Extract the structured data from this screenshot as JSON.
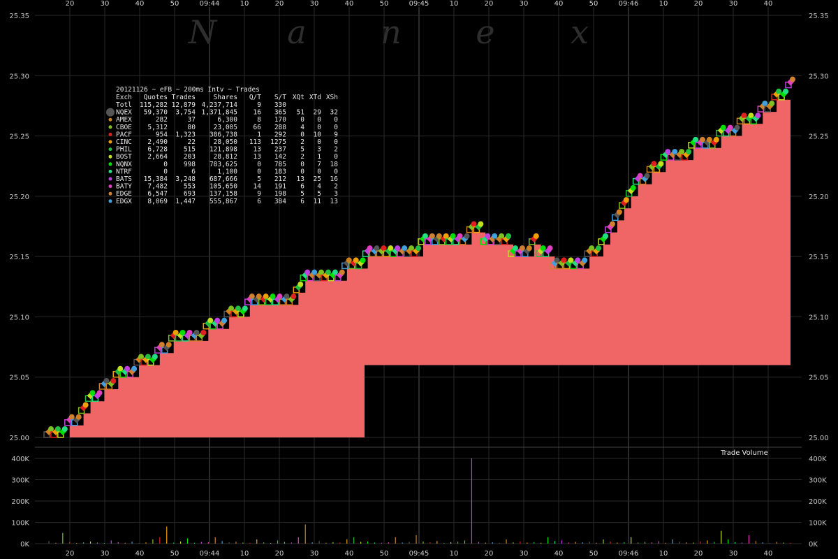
{
  "chart_data": {
    "type": "scatter",
    "title": "20121126 ~ eFB ~ 200ms Intv ~ Trades",
    "watermark_letters": [
      "N",
      "a",
      "n",
      "e",
      "x"
    ],
    "price_axis": {
      "ylim": [
        25.0,
        25.35
      ],
      "ticks": [
        "25.00",
        "25.05",
        "25.10",
        "25.15",
        "25.20",
        "25.25",
        "25.30",
        "25.35"
      ]
    },
    "volume_axis": {
      "title": "Trade Volume",
      "ylim": [
        0,
        400000
      ],
      "ticks": [
        "0K",
        "100K",
        "200K",
        "300K",
        "400K"
      ]
    },
    "time_axis": {
      "ticks": [
        {
          "label": "20",
          "major": false
        },
        {
          "label": "30",
          "major": false
        },
        {
          "label": "40",
          "major": false
        },
        {
          "label": "50",
          "major": false
        },
        {
          "label": "09:44",
          "major": true
        },
        {
          "label": "10",
          "major": false
        },
        {
          "label": "20",
          "major": false
        },
        {
          "label": "30",
          "major": false
        },
        {
          "label": "40",
          "major": false
        },
        {
          "label": "50",
          "major": false
        },
        {
          "label": "09:45",
          "major": true
        },
        {
          "label": "10",
          "major": false
        },
        {
          "label": "20",
          "major": false
        },
        {
          "label": "30",
          "major": false
        },
        {
          "label": "40",
          "major": false
        },
        {
          "label": "50",
          "major": false
        },
        {
          "label": "09:46",
          "major": true
        },
        {
          "label": "10",
          "major": false
        },
        {
          "label": "20",
          "major": false
        },
        {
          "label": "30",
          "major": false
        },
        {
          "label": "40",
          "major": false
        }
      ]
    },
    "table": {
      "header": [
        "Exch",
        "Quotes",
        "Trades",
        "Shares",
        "Q/T",
        "S/T",
        "XQt",
        "XTd",
        "XSh"
      ],
      "rows": [
        {
          "cells": [
            "Totl",
            "115,282",
            "12,879",
            "4,237,714",
            "9",
            "330",
            "",
            "",
            ""
          ],
          "color": ""
        },
        {
          "cells": [
            "NQEX",
            "59,370",
            "3,754",
            "1,371,845",
            "16",
            "365",
            "51",
            "29",
            "32"
          ],
          "color": "#555555"
        },
        {
          "cells": [
            "AMEX",
            "282",
            "37",
            "6,300",
            "8",
            "170",
            "0",
            "0",
            "0"
          ],
          "color": "#d08020"
        },
        {
          "cells": [
            "CBOE",
            "5,312",
            "80",
            "23,005",
            "66",
            "288",
            "4",
            "0",
            "0"
          ],
          "color": "#80c020"
        },
        {
          "cells": [
            "PACF",
            "954",
            "1,323",
            "386,738",
            "1",
            "292",
            "0",
            "10",
            "9"
          ],
          "color": "#e02020"
        },
        {
          "cells": [
            "CINC",
            "2,490",
            "22",
            "28,050",
            "113",
            "1275",
            "2",
            "0",
            "0"
          ],
          "color": "#f0a000"
        },
        {
          "cells": [
            "PHIL",
            "6,728",
            "515",
            "121,898",
            "13",
            "237",
            "5",
            "3",
            "2"
          ],
          "color": "#20c040"
        },
        {
          "cells": [
            "BOST",
            "2,664",
            "203",
            "28,812",
            "13",
            "142",
            "2",
            "1",
            "0"
          ],
          "color": "#c0e020"
        },
        {
          "cells": [
            "NQNX",
            "0",
            "998",
            "783,625",
            "0",
            "785",
            "0",
            "7",
            "18"
          ],
          "color": "#00e000"
        },
        {
          "cells": [
            "NTRF",
            "0",
            "6",
            "1,100",
            "0",
            "183",
            "0",
            "0",
            "0"
          ],
          "color": "#20e080"
        },
        {
          "cells": [
            "BATS",
            "15,384",
            "3,248",
            "687,666",
            "5",
            "212",
            "13",
            "25",
            "16"
          ],
          "color": "#c040e0"
        },
        {
          "cells": [
            "BATY",
            "7,482",
            "553",
            "105,650",
            "14",
            "191",
            "6",
            "4",
            "2"
          ],
          "color": "#e040c0"
        },
        {
          "cells": [
            "EDGE",
            "6,547",
            "693",
            "137,158",
            "9",
            "198",
            "5",
            "5",
            "3"
          ],
          "color": "#d08030"
        },
        {
          "cells": [
            "EDGX",
            "8,069",
            "1,447",
            "555,867",
            "6",
            "384",
            "6",
            "11",
            "13"
          ],
          "color": "#40a0e0"
        }
      ]
    },
    "series": [
      {
        "name": "Bid",
        "x": [
          0,
          1,
          2,
          3,
          4,
          5,
          6,
          7,
          8,
          9,
          10,
          11,
          12,
          13,
          14,
          15,
          16,
          17,
          18,
          19,
          20,
          21,
          22,
          23,
          24,
          25,
          26,
          27,
          28,
          29,
          30,
          31,
          32,
          33,
          34,
          35,
          36,
          37,
          38,
          39,
          40,
          41,
          42,
          43,
          44,
          45,
          46,
          47,
          48,
          49,
          50,
          51,
          52,
          53,
          54,
          55,
          56,
          57,
          58,
          59,
          60,
          61,
          62,
          63,
          64,
          65,
          66,
          67,
          68,
          69,
          70,
          71,
          72,
          73,
          74,
          75,
          76,
          77,
          78,
          79,
          80,
          81,
          82,
          83,
          84,
          85,
          86,
          87,
          88,
          89,
          90,
          91,
          92,
          93,
          94,
          95,
          96,
          97,
          98,
          99,
          100,
          101,
          102,
          103,
          104,
          105,
          106,
          107
        ],
        "values": [
          25.0,
          25.0,
          25.0,
          25.01,
          25.01,
          25.02,
          25.03,
          25.03,
          25.04,
          25.04,
          25.05,
          25.05,
          25.05,
          25.06,
          25.06,
          25.06,
          25.07,
          25.07,
          25.08,
          25.08,
          25.08,
          25.08,
          25.08,
          25.09,
          25.09,
          25.09,
          25.1,
          25.1,
          25.1,
          25.11,
          25.11,
          25.11,
          25.11,
          25.11,
          25.11,
          25.11,
          25.12,
          25.13,
          25.13,
          25.13,
          25.13,
          25.13,
          25.13,
          25.14,
          25.14,
          25.14,
          25.15,
          25.15,
          25.15,
          25.15,
          25.15,
          25.15,
          25.15,
          25.15,
          25.16,
          25.16,
          25.16,
          25.16,
          25.16,
          25.16,
          25.16,
          25.17,
          25.17,
          25.16,
          25.16,
          25.16,
          25.16,
          25.15,
          25.15,
          25.15,
          25.16,
          25.15,
          25.15,
          25.14,
          25.14,
          25.14,
          25.14,
          25.14,
          25.15,
          25.15,
          25.16,
          25.17,
          25.18,
          25.19,
          25.2,
          25.21,
          25.21,
          25.22,
          25.22,
          25.23,
          25.23,
          25.23,
          25.23,
          25.24,
          25.24,
          25.24,
          25.24,
          25.25,
          25.25,
          25.25,
          25.26,
          25.26,
          25.26,
          25.27,
          25.27,
          25.28,
          25.28,
          25.29
        ]
      }
    ],
    "trade_volume": [
      12000,
      4000,
      50000,
      8000,
      3000,
      6000,
      10000,
      5000,
      3000,
      15000,
      7000,
      4000,
      9000,
      3000,
      6000,
      20000,
      30000,
      80000,
      5000,
      10000,
      25000,
      4000,
      8000,
      7000,
      30000,
      12000,
      6000,
      9000,
      5000,
      4000,
      20000,
      6000,
      3000,
      15000,
      8000,
      5000,
      30000,
      90000,
      6000,
      12000,
      4000,
      7000,
      5000,
      20000,
      30000,
      8000,
      10000,
      5000,
      4000,
      6000,
      30000,
      5000,
      8000,
      40000,
      10000,
      6000,
      12000,
      3000,
      7000,
      9000,
      15000,
      400000,
      8000,
      5000,
      6000,
      4000,
      20000,
      6000,
      10000,
      5000,
      7000,
      4000,
      30000,
      12000,
      15000,
      5000,
      8000,
      6000,
      9000,
      4000,
      20000,
      10000,
      5000,
      7000,
      30000,
      5000,
      8000,
      6000,
      12000,
      4000,
      20000,
      9000,
      6000,
      5000,
      10000,
      15000,
      8000,
      60000,
      20000,
      7000,
      5000,
      40000,
      12000,
      6000,
      3000,
      8000,
      5000,
      4000
    ],
    "grid": true
  }
}
